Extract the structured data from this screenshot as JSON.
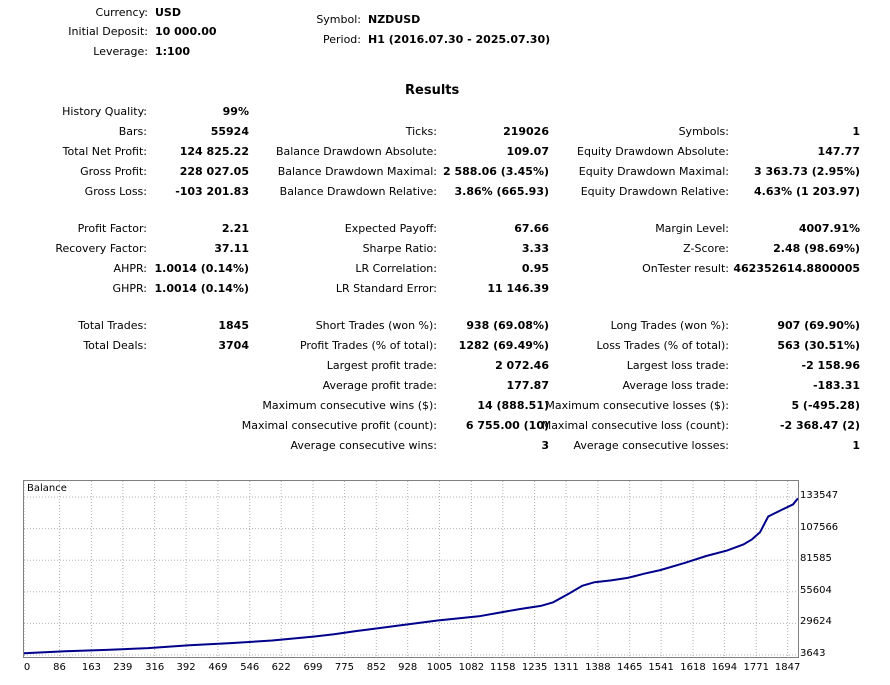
{
  "header": {
    "currency": {
      "label": "Currency:",
      "value": "USD"
    },
    "deposit": {
      "label": "Initial Deposit:",
      "value": "10 000.00"
    },
    "leverage": {
      "label": "Leverage:",
      "value": "1:100"
    },
    "symbol": {
      "label": "Symbol:",
      "value": "NZDUSD"
    },
    "period": {
      "label": "Period:",
      "value": "H1 (2016.07.30 - 2025.07.30)"
    }
  },
  "results_title": "Results",
  "col1": [
    {
      "label": "History Quality:",
      "value": "99%"
    },
    {
      "label": "Bars:",
      "value": "55924"
    },
    {
      "label": "Total Net Profit:",
      "value": "124 825.22"
    },
    {
      "label": "Gross Profit:",
      "value": "228 027.05"
    },
    {
      "label": "Gross Loss:",
      "value": "-103 201.83"
    },
    {
      "label": "Profit Factor:",
      "value": "2.21"
    },
    {
      "label": "Recovery Factor:",
      "value": "37.11"
    },
    {
      "label": "AHPR:",
      "value": "1.0014 (0.14%)"
    },
    {
      "label": "GHPR:",
      "value": "1.0014 (0.14%)"
    },
    {
      "label": "Total Trades:",
      "value": "1845"
    },
    {
      "label": "Total Deals:",
      "value": "3704"
    }
  ],
  "col2": [
    {
      "label": "Ticks:",
      "value": "219026"
    },
    {
      "label": "Balance Drawdown Absolute:",
      "value": "109.07"
    },
    {
      "label": "Balance Drawdown Maximal:",
      "value": "2 588.06 (3.45%)"
    },
    {
      "label": "Balance Drawdown Relative:",
      "value": "3.86% (665.93)"
    },
    {
      "label": "Expected Payoff:",
      "value": "67.66"
    },
    {
      "label": "Sharpe Ratio:",
      "value": "3.33"
    },
    {
      "label": "LR Correlation:",
      "value": "0.95"
    },
    {
      "label": "LR Standard Error:",
      "value": "11 146.39"
    },
    {
      "label": "Short Trades (won %):",
      "value": "938 (69.08%)"
    },
    {
      "label": "Profit Trades (% of total):",
      "value": "1282 (69.49%)"
    },
    {
      "label": "Largest profit trade:",
      "value": "2 072.46"
    },
    {
      "label": "Average profit trade:",
      "value": "177.87"
    },
    {
      "label": "Maximum consecutive wins ($):",
      "value": "14 (888.51)"
    },
    {
      "label": "Maximal consecutive profit (count):",
      "value": "6 755.00 (10)"
    },
    {
      "label": "Average consecutive wins:",
      "value": "3"
    }
  ],
  "col3": [
    {
      "label": "Symbols:",
      "value": "1"
    },
    {
      "label": "Equity Drawdown Absolute:",
      "value": "147.77"
    },
    {
      "label": "Equity Drawdown Maximal:",
      "value": "3 363.73 (2.95%)"
    },
    {
      "label": "Equity Drawdown Relative:",
      "value": "4.63% (1 203.97)"
    },
    {
      "label": "Margin Level:",
      "value": "4007.91%"
    },
    {
      "label": "Z-Score:",
      "value": "2.48 (98.69%)"
    },
    {
      "label": "OnTester result:",
      "value": "462352614.8800005"
    },
    {
      "label": "Long Trades (won %):",
      "value": "907 (69.90%)"
    },
    {
      "label": "Loss Trades (% of total):",
      "value": "563 (30.51%)"
    },
    {
      "label": "Largest loss trade:",
      "value": "-2 158.96"
    },
    {
      "label": "Average loss trade:",
      "value": "-183.31"
    },
    {
      "label": "Maximum consecutive losses ($):",
      "value": "5 (-495.28)"
    },
    {
      "label": "Maximal consecutive loss (count):",
      "value": "-2 368.47 (2)"
    },
    {
      "label": "Average consecutive losses:",
      "value": "1"
    }
  ],
  "chart_data": {
    "type": "line",
    "title": "Balance",
    "series": [
      {
        "color": "#00008b",
        "x": [
          0,
          100,
          200,
          300,
          400,
          500,
          600,
          700,
          750,
          800,
          900,
          1000,
          1100,
          1150,
          1200,
          1250,
          1280,
          1320,
          1350,
          1380,
          1420,
          1460,
          1500,
          1540,
          1600,
          1650,
          1700,
          1740,
          1760,
          1780,
          1800,
          1830,
          1860,
          1872
        ],
        "y": [
          5100,
          6700,
          7800,
          9300,
          11600,
          13400,
          15600,
          18800,
          20700,
          23200,
          27600,
          32000,
          35500,
          38500,
          41500,
          44000,
          47000,
          54500,
          60500,
          63500,
          65000,
          67000,
          70500,
          73500,
          79500,
          85000,
          89500,
          94500,
          98500,
          104500,
          117500,
          122500,
          127500,
          132500
        ]
      }
    ],
    "y_ticks": [
      "133547",
      "107566",
      "81585",
      "55604",
      "29624",
      "3643"
    ],
    "y_tick_values": [
      133547,
      107566,
      81585,
      55604,
      29624,
      3643
    ],
    "x_ticks": [
      "0",
      "86",
      "163",
      "239",
      "316",
      "392",
      "469",
      "546",
      "622",
      "699",
      "775",
      "852",
      "928",
      "1005",
      "1082",
      "1158",
      "1235",
      "1311",
      "1388",
      "1465",
      "1541",
      "1618",
      "1694",
      "1771",
      "1847"
    ],
    "xlim": [
      0,
      1872
    ],
    "ylim": [
      3643,
      133547
    ],
    "grid": true
  }
}
